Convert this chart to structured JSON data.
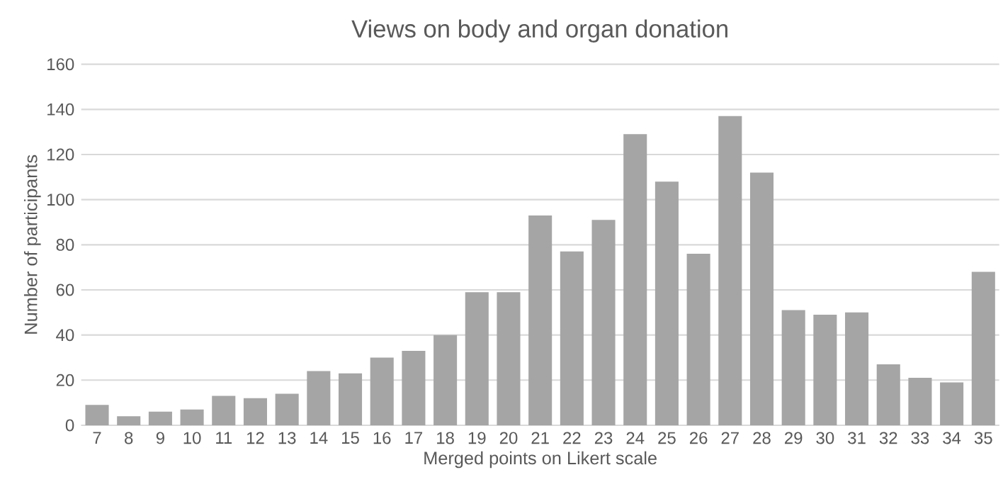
{
  "chart_data": {
    "type": "bar",
    "title": "Views on body and organ donation",
    "xlabel": "Merged  points on Likert scale",
    "ylabel": "Number of participants",
    "categories": [
      "7",
      "8",
      "9",
      "10",
      "11",
      "12",
      "13",
      "14",
      "15",
      "16",
      "17",
      "18",
      "19",
      "20",
      "21",
      "22",
      "23",
      "24",
      "25",
      "26",
      "27",
      "28",
      "29",
      "30",
      "31",
      "32",
      "33",
      "34",
      "35"
    ],
    "values": [
      9,
      4,
      6,
      7,
      13,
      12,
      14,
      24,
      23,
      30,
      33,
      40,
      59,
      59,
      93,
      77,
      91,
      129,
      108,
      76,
      137,
      112,
      51,
      49,
      50,
      27,
      21,
      19,
      68
    ],
    "color": "#a5a5a5",
    "ylim": [
      0,
      160
    ],
    "yticks": [
      0,
      20,
      40,
      60,
      80,
      100,
      120,
      140,
      160
    ],
    "grid": "y"
  }
}
